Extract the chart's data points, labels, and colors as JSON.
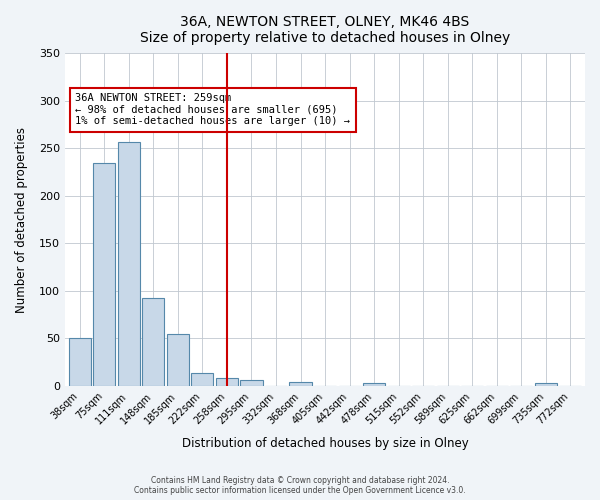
{
  "title": "36A, NEWTON STREET, OLNEY, MK46 4BS",
  "subtitle": "Size of property relative to detached houses in Olney",
  "xlabel": "Distribution of detached houses by size in Olney",
  "ylabel": "Number of detached properties",
  "bar_labels": [
    "38sqm",
    "75sqm",
    "111sqm",
    "148sqm",
    "185sqm",
    "222sqm",
    "258sqm",
    "295sqm",
    "332sqm",
    "368sqm",
    "405sqm",
    "442sqm",
    "478sqm",
    "515sqm",
    "552sqm",
    "589sqm",
    "625sqm",
    "662sqm",
    "699sqm",
    "735sqm",
    "772sqm"
  ],
  "bar_heights": [
    50,
    235,
    257,
    93,
    55,
    14,
    8,
    6,
    0,
    4,
    0,
    0,
    3,
    0,
    0,
    0,
    0,
    0,
    0,
    3,
    0
  ],
  "bar_color": "#c8d8e8",
  "bar_edge_color": "#5588aa",
  "vline_x_index": 6,
  "vline_color": "#cc0000",
  "annotation_title": "36A NEWTON STREET: 259sqm",
  "annotation_line2": "← 98% of detached houses are smaller (695)",
  "annotation_line3": "1% of semi-detached houses are larger (10) →",
  "annotation_box_color": "#cc0000",
  "ylim": [
    0,
    350
  ],
  "yticks": [
    0,
    50,
    100,
    150,
    200,
    250,
    300,
    350
  ],
  "footer1": "Contains HM Land Registry data © Crown copyright and database right 2024.",
  "footer2": "Contains public sector information licensed under the Open Government Licence v3.0.",
  "bg_color": "#f0f4f8",
  "plot_bg_color": "#ffffff"
}
